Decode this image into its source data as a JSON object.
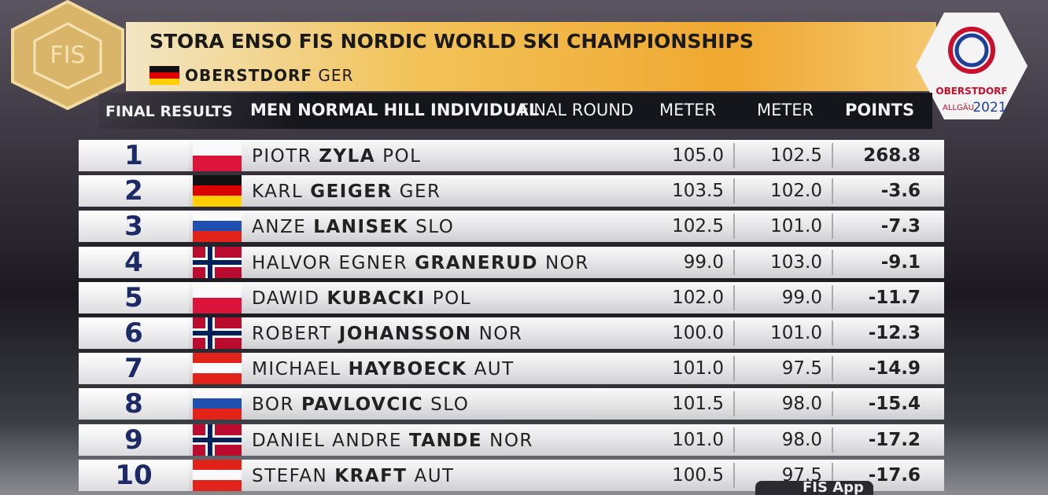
{
  "header": {
    "logo": "FIS",
    "title": "STORA ENSO FIS NORDIC WORLD SKI CHAMPIONSHIPS",
    "venue": "OBERSTDORF",
    "venue_country": "GER"
  },
  "event_logo": {
    "line1": "OBERSTDORF",
    "line2": "ALLGÄU",
    "year": "2021"
  },
  "table": {
    "caption": "FINAL RESULTS",
    "event": "MEN NORMAL HILL INDIVIDUAL",
    "round": "FINAL ROUND",
    "columns": [
      "METER",
      "METER",
      "POINTS"
    ],
    "rows": [
      {
        "rank": "1",
        "first": "PIOTR",
        "last": "ZYLA",
        "nation": "POL",
        "meter1": "105.0",
        "meter2": "102.5",
        "points": "268.8"
      },
      {
        "rank": "2",
        "first": "KARL",
        "last": "GEIGER",
        "nation": "GER",
        "meter1": "103.5",
        "meter2": "102.0",
        "points": "-3.6"
      },
      {
        "rank": "3",
        "first": "ANZE",
        "last": "LANISEK",
        "nation": "SLO",
        "meter1": "102.5",
        "meter2": "101.0",
        "points": "-7.3"
      },
      {
        "rank": "4",
        "first": "HALVOR EGNER",
        "last": "GRANERUD",
        "nation": "NOR",
        "meter1": "99.0",
        "meter2": "103.0",
        "points": "-9.1"
      },
      {
        "rank": "5",
        "first": "DAWID",
        "last": "KUBACKI",
        "nation": "POL",
        "meter1": "102.0",
        "meter2": "99.0",
        "points": "-11.7"
      },
      {
        "rank": "6",
        "first": "ROBERT",
        "last": "JOHANSSON",
        "nation": "NOR",
        "meter1": "100.0",
        "meter2": "101.0",
        "points": "-12.3"
      },
      {
        "rank": "7",
        "first": "MICHAEL",
        "last": "HAYBOECK",
        "nation": "AUT",
        "meter1": "101.0",
        "meter2": "97.5",
        "points": "-14.9"
      },
      {
        "rank": "8",
        "first": "BOR",
        "last": "PAVLOVCIC",
        "nation": "SLO",
        "meter1": "101.5",
        "meter2": "98.0",
        "points": "-15.4"
      },
      {
        "rank": "9",
        "first": "DANIEL ANDRE",
        "last": "TANDE",
        "nation": "NOR",
        "meter1": "101.0",
        "meter2": "98.0",
        "points": "-17.2"
      },
      {
        "rank": "10",
        "first": "STEFAN",
        "last": "KRAFT",
        "nation": "AUT",
        "meter1": "100.5",
        "meter2": "97.5",
        "points": "-17.6"
      }
    ]
  },
  "footer": "FIS App"
}
